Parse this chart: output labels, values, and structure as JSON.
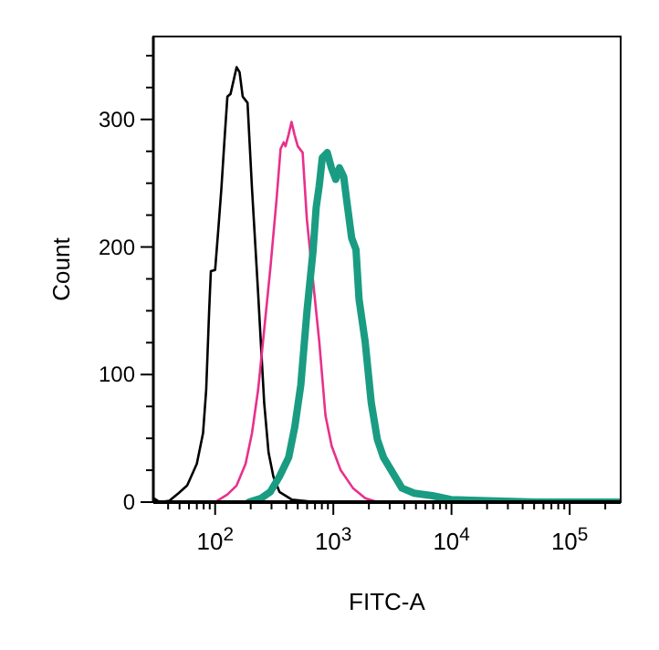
{
  "chart_data": {
    "type": "line",
    "xlabel": "FITC-A",
    "ylabel": "Count",
    "log": "x",
    "grid": false,
    "line_style": "solid",
    "xlim": [
      30,
      270000
    ],
    "ylim": [
      0,
      365
    ],
    "xticks": [
      {
        "value": 40,
        "label": null
      },
      {
        "value": 50,
        "label": null
      },
      {
        "value": 60,
        "label": null
      },
      {
        "value": 70,
        "label": null
      },
      {
        "value": 80,
        "label": null
      },
      {
        "value": 90,
        "label": null
      },
      {
        "value": 100,
        "label": "10$^{2}$"
      },
      {
        "value": 200,
        "label": null
      },
      {
        "value": 300,
        "label": null
      },
      {
        "value": 400,
        "label": null
      },
      {
        "value": 500,
        "label": null
      },
      {
        "value": 600,
        "label": null
      },
      {
        "value": 700,
        "label": null
      },
      {
        "value": 800,
        "label": null
      },
      {
        "value": 900,
        "label": null
      },
      {
        "value": 1000,
        "label": "10$^{3}$"
      },
      {
        "value": 2000,
        "label": null
      },
      {
        "value": 3000,
        "label": null
      },
      {
        "value": 4000,
        "label": null
      },
      {
        "value": 5000,
        "label": null
      },
      {
        "value": 6000,
        "label": null
      },
      {
        "value": 7000,
        "label": null
      },
      {
        "value": 8000,
        "label": null
      },
      {
        "value": 9000,
        "label": null
      },
      {
        "value": 10000,
        "label": "10$^{4}$"
      },
      {
        "value": 20000,
        "label": null
      },
      {
        "value": 30000,
        "label": null
      },
      {
        "value": 40000,
        "label": null
      },
      {
        "value": 50000,
        "label": null
      },
      {
        "value": 60000,
        "label": null
      },
      {
        "value": 70000,
        "label": null
      },
      {
        "value": 80000,
        "label": null
      },
      {
        "value": 90000,
        "label": null
      },
      {
        "value": 100000,
        "label": "10$^{5}$"
      },
      {
        "value": 200000,
        "label": null
      }
    ],
    "yticks": [
      0,
      {
        "value": 25,
        "label": null
      },
      {
        "value": 50,
        "label": null
      },
      {
        "value": 75,
        "label": null
      },
      100,
      {
        "value": 125,
        "label": null
      },
      {
        "value": 150,
        "label": null
      },
      {
        "value": 175,
        "label": null
      },
      200,
      {
        "value": 225,
        "label": null
      },
      {
        "value": 250,
        "label": null
      },
      {
        "value": 275,
        "label": null
      },
      300,
      {
        "value": 325,
        "label": null
      },
      {
        "value": 350,
        "label": null
      }
    ],
    "series": [
      {
        "color": "#000000",
        "x": [
          30.3,
          34,
          41,
          49,
          58,
          70,
          79,
          84,
          89,
          92,
          100,
          106,
          113,
          120,
          127,
          135,
          152,
          161,
          171,
          188,
          205,
          217,
          231,
          245,
          260,
          283,
          311,
          350,
          444,
          716
        ],
        "values": [
          3,
          0,
          1,
          7,
          13,
          30,
          54,
          88,
          150,
          181,
          182,
          212,
          246,
          284,
          318,
          320,
          341,
          337,
          318,
          313,
          246,
          207,
          164,
          121,
          78,
          39,
          20,
          8,
          2,
          0
        ]
      },
      {
        "color": "#e8308c",
        "x": [
          100,
          127,
          152,
          181,
          205,
          231,
          260,
          293,
          330,
          358,
          380,
          394,
          418,
          443,
          470,
          500,
          550,
          597,
          673,
          760,
          858,
          968,
          1154,
          1467,
          1863,
          2366
        ],
        "values": [
          0,
          6,
          13,
          30,
          54,
          88,
          135,
          183,
          236,
          277,
          282,
          279,
          288,
          298,
          288,
          279,
          274,
          222,
          174,
          126,
          68,
          44,
          25,
          11,
          3,
          0
        ]
      },
      {
        "color": "#1a9c82",
        "x": [
          193,
          245,
          293,
          350,
          419,
          472,
          531,
          599,
          674,
          716,
          760,
          807,
          888,
          964,
          1049,
          1127,
          1225,
          1300,
          1430,
          1555,
          1651,
          1858,
          2094,
          2360,
          2660,
          3183,
          3805,
          4831,
          6906,
          9880,
          20200,
          52500,
          270000
        ],
        "values": [
          0,
          3,
          8,
          20,
          35,
          59,
          92,
          150,
          197,
          231,
          248,
          270,
          274,
          262,
          253,
          262,
          255,
          236,
          207,
          198,
          159,
          126,
          78,
          49,
          35,
          23,
          11,
          7,
          5,
          2,
          1,
          0,
          0
        ]
      }
    ]
  }
}
